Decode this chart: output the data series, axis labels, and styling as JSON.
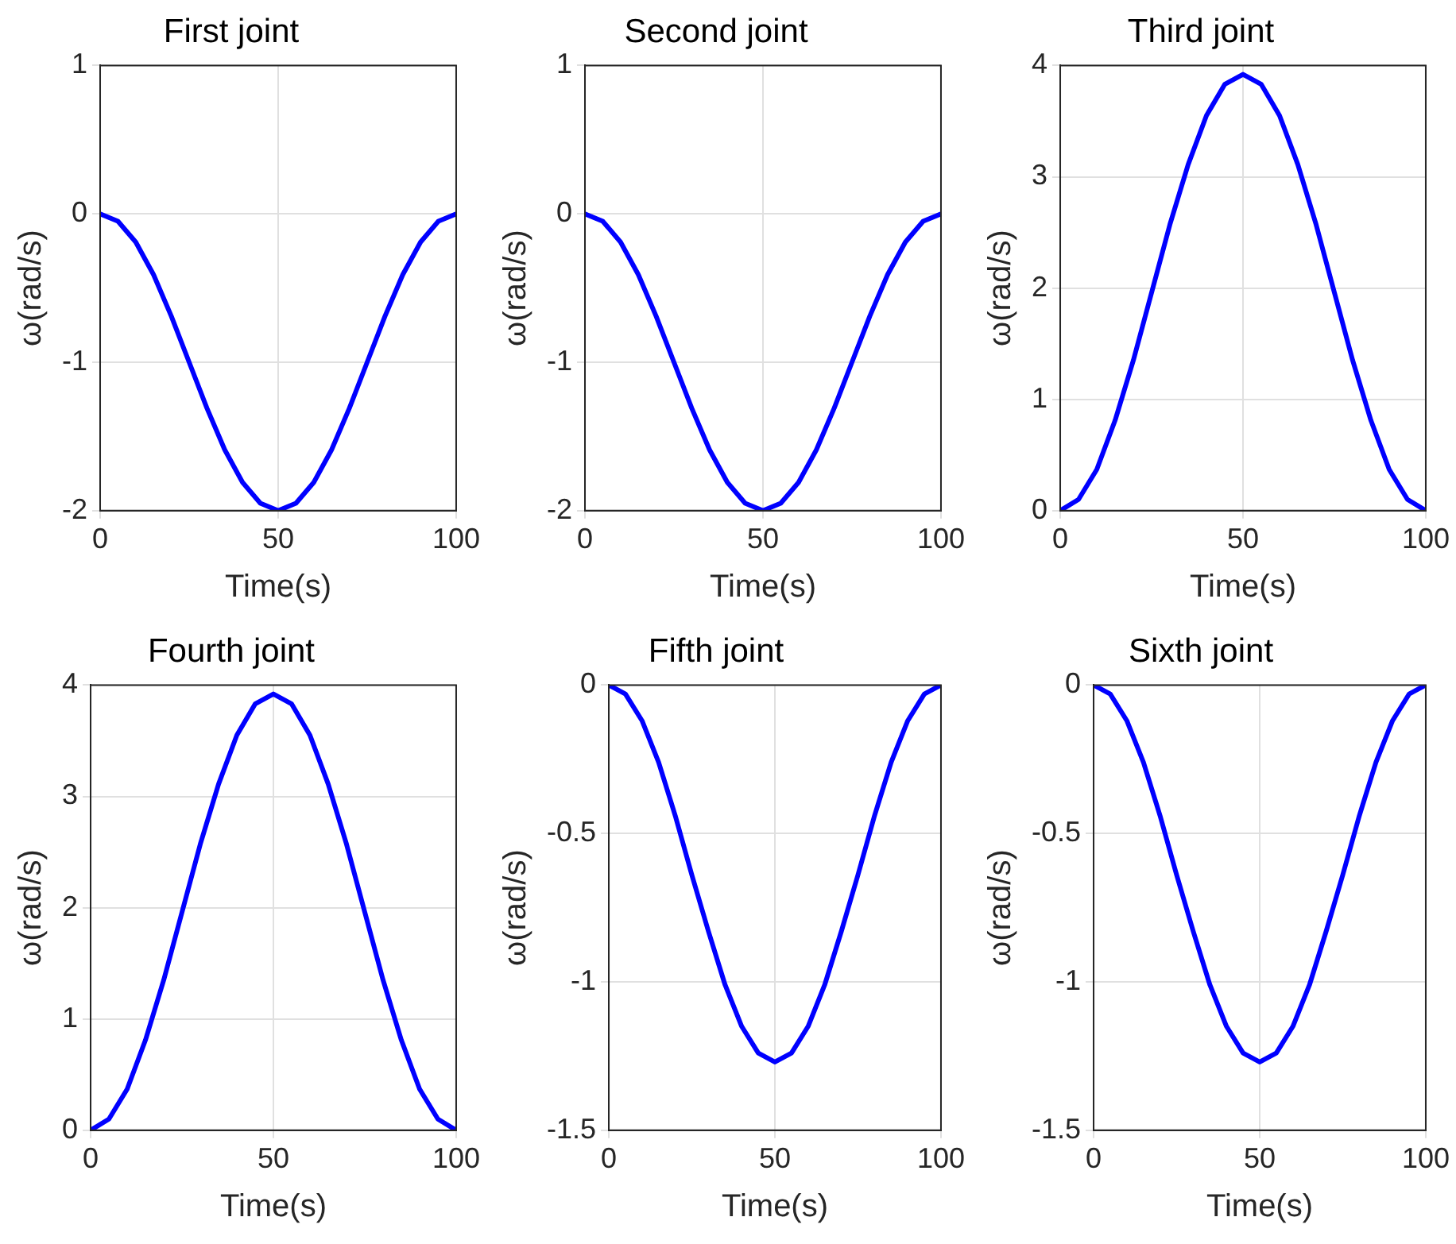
{
  "chart_data": [
    {
      "type": "line",
      "title": "First joint",
      "xlabel": "Time(s)",
      "ylabel": "ω(rad/s)",
      "x": [
        0,
        5,
        10,
        15,
        20,
        25,
        30,
        35,
        40,
        45,
        50,
        55,
        60,
        65,
        70,
        75,
        80,
        85,
        90,
        95,
        100
      ],
      "xlim": [
        0,
        100
      ],
      "xticks": [
        0,
        50,
        100
      ],
      "ylim": [
        -2,
        1
      ],
      "yticks": [
        -2,
        -1,
        0,
        1
      ],
      "grid": true,
      "marker": "none",
      "series": [
        {
          "color": "#0000ff",
          "values": [
            0,
            -0.05,
            -0.19,
            -0.41,
            -0.69,
            -1,
            -1.31,
            -1.59,
            -1.81,
            -1.95,
            -2,
            -1.95,
            -1.81,
            -1.59,
            -1.31,
            -1,
            -0.69,
            -0.41,
            -0.19,
            -0.05,
            0
          ]
        }
      ]
    },
    {
      "type": "line",
      "title": "Second joint",
      "xlabel": "Time(s)",
      "ylabel": "ω(rad/s)",
      "x": [
        0,
        5,
        10,
        15,
        20,
        25,
        30,
        35,
        40,
        45,
        50,
        55,
        60,
        65,
        70,
        75,
        80,
        85,
        90,
        95,
        100
      ],
      "xlim": [
        0,
        100
      ],
      "xticks": [
        0,
        50,
        100
      ],
      "ylim": [
        -2,
        1
      ],
      "yticks": [
        -2,
        -1,
        0,
        1
      ],
      "grid": true,
      "marker": "none",
      "series": [
        {
          "color": "#0000ff",
          "values": [
            0,
            -0.05,
            -0.19,
            -0.41,
            -0.69,
            -1,
            -1.31,
            -1.59,
            -1.81,
            -1.95,
            -2,
            -1.95,
            -1.81,
            -1.59,
            -1.31,
            -1,
            -0.69,
            -0.41,
            -0.19,
            -0.05,
            0
          ]
        }
      ]
    },
    {
      "type": "line",
      "title": "Third joint",
      "xlabel": "Time(s)",
      "ylabel": "ω(rad/s)",
      "x": [
        0,
        5,
        10,
        15,
        20,
        25,
        30,
        35,
        40,
        45,
        50,
        55,
        60,
        65,
        70,
        75,
        80,
        85,
        90,
        95,
        100
      ],
      "xlim": [
        0,
        100
      ],
      "xticks": [
        0,
        50,
        100
      ],
      "ylim": [
        0,
        4
      ],
      "yticks": [
        0,
        1,
        2,
        3,
        4
      ],
      "grid": true,
      "marker": "none",
      "series": [
        {
          "color": "#0000ff",
          "values": [
            0,
            0.1,
            0.37,
            0.81,
            1.35,
            1.96,
            2.57,
            3.11,
            3.55,
            3.83,
            3.92,
            3.83,
            3.55,
            3.11,
            2.57,
            1.96,
            1.35,
            0.81,
            0.37,
            0.1,
            0
          ]
        }
      ]
    },
    {
      "type": "line",
      "title": "Fourth joint",
      "xlabel": "Time(s)",
      "ylabel": "ω(rad/s)",
      "x": [
        0,
        5,
        10,
        15,
        20,
        25,
        30,
        35,
        40,
        45,
        50,
        55,
        60,
        65,
        70,
        75,
        80,
        85,
        90,
        95,
        100
      ],
      "xlim": [
        0,
        100
      ],
      "xticks": [
        0,
        50,
        100
      ],
      "ylim": [
        0,
        4
      ],
      "yticks": [
        0,
        1,
        2,
        3,
        4
      ],
      "grid": true,
      "marker": "none",
      "series": [
        {
          "color": "#0000ff",
          "values": [
            0,
            0.1,
            0.37,
            0.81,
            1.35,
            1.96,
            2.57,
            3.11,
            3.55,
            3.83,
            3.92,
            3.83,
            3.55,
            3.11,
            2.57,
            1.96,
            1.35,
            0.81,
            0.37,
            0.1,
            0
          ]
        }
      ]
    },
    {
      "type": "line",
      "title": "Fifth joint",
      "xlabel": "Time(s)",
      "ylabel": "ω(rad/s)",
      "x": [
        0,
        5,
        10,
        15,
        20,
        25,
        30,
        35,
        40,
        45,
        50,
        55,
        60,
        65,
        70,
        75,
        80,
        85,
        90,
        95,
        100
      ],
      "xlim": [
        0,
        100
      ],
      "xticks": [
        0,
        50,
        100
      ],
      "ylim": [
        -1.5,
        0
      ],
      "yticks": [
        -1.5,
        -1,
        -0.5,
        0
      ],
      "grid": true,
      "marker": "none",
      "series": [
        {
          "color": "#0000ff",
          "values": [
            0,
            -0.03,
            -0.12,
            -0.26,
            -0.44,
            -0.64,
            -0.83,
            -1.01,
            -1.15,
            -1.24,
            -1.27,
            -1.24,
            -1.15,
            -1.01,
            -0.83,
            -0.64,
            -0.44,
            -0.26,
            -0.12,
            -0.03,
            0
          ]
        }
      ]
    },
    {
      "type": "line",
      "title": "Sixth joint",
      "xlabel": "Time(s)",
      "ylabel": "ω(rad/s)",
      "x": [
        0,
        5,
        10,
        15,
        20,
        25,
        30,
        35,
        40,
        45,
        50,
        55,
        60,
        65,
        70,
        75,
        80,
        85,
        90,
        95,
        100
      ],
      "xlim": [
        0,
        100
      ],
      "xticks": [
        0,
        50,
        100
      ],
      "ylim": [
        -1.5,
        0
      ],
      "yticks": [
        -1.5,
        -1,
        -0.5,
        0
      ],
      "grid": true,
      "marker": "none",
      "series": [
        {
          "color": "#0000ff",
          "values": [
            0,
            -0.03,
            -0.12,
            -0.26,
            -0.44,
            -0.64,
            -0.83,
            -1.01,
            -1.15,
            -1.24,
            -1.27,
            -1.24,
            -1.15,
            -1.01,
            -0.83,
            -0.64,
            -0.44,
            -0.26,
            -0.12,
            -0.03,
            0
          ]
        }
      ]
    }
  ]
}
